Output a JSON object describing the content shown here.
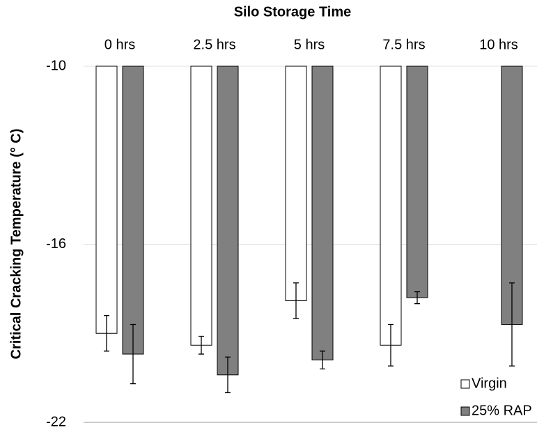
{
  "chart_data": {
    "type": "bar",
    "title": "Silo Storage Time",
    "y_label": "Critical Cracking Temperature (° C)",
    "categories": [
      "0 hrs",
      "2.5 hrs",
      "5 hrs",
      "7.5 hrs",
      "10 hrs"
    ],
    "series": [
      {
        "name": "Virgin",
        "color": "#ffffff",
        "values": [
          -19.0,
          -19.4,
          -17.9,
          -19.4,
          null
        ],
        "errors": [
          0.6,
          0.3,
          0.6,
          0.7,
          null
        ]
      },
      {
        "name": "25% RAP",
        "color": "#808080",
        "values": [
          -19.7,
          -20.4,
          -19.9,
          -17.8,
          -18.7
        ],
        "errors": [
          1.0,
          0.6,
          0.3,
          0.2,
          1.4
        ]
      }
    ],
    "ylim": [
      -22,
      -10
    ],
    "yticks": [
      -22,
      -16,
      -10
    ],
    "grid": true,
    "legend": "lower right",
    "category_axis": "top"
  }
}
